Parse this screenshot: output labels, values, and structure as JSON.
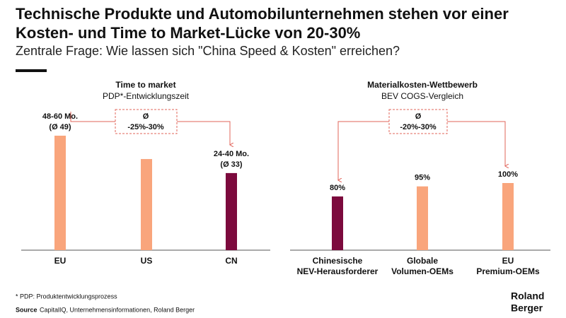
{
  "header": {
    "title": "Technische Produkte und Automobilunternehmen stehen vor einer Kosten- und Time to Market-Lücke von 20-30%",
    "subtitle": "Zentrale Frage: Wie lassen sich \"China Speed & Kosten\" erreichen?"
  },
  "chart_data": [
    {
      "type": "bar",
      "title": "Time to market",
      "subtitle": "PDP*-Entwicklungszeit",
      "categories": [
        [
          "EU"
        ],
        [
          "US"
        ],
        [
          "CN"
        ]
      ],
      "values": [
        49,
        39,
        33
      ],
      "value_labels": [
        [
          "48-60 Mo.",
          "(Ø 49)"
        ],
        null,
        [
          "24-40 Mo.",
          "(Ø 33)"
        ]
      ],
      "colors": [
        "#f9a57c",
        "#f9a57c",
        "#7c0a3d"
      ],
      "annotation": [
        "Ø",
        "-25%-30%"
      ]
    },
    {
      "type": "bar",
      "title": "Materialkosten-Wettbewerb",
      "subtitle": "BEV COGS-Vergleich",
      "categories": [
        [
          "Chinesische",
          "NEV-Herausforderer"
        ],
        [
          "Globale",
          "Volumen-OEMs"
        ],
        [
          "EU",
          "Premium-OEMs"
        ]
      ],
      "values": [
        80,
        95,
        100
      ],
      "value_labels": [
        [
          "80%"
        ],
        [
          "95%"
        ],
        [
          "100%"
        ]
      ],
      "colors": [
        "#7c0a3d",
        "#f9a57c",
        "#f9a57c"
      ],
      "annotation": [
        "Ø",
        "-20%-30%"
      ]
    }
  ],
  "footnote": "* PDP: Produktentwicklungsprozess",
  "source": {
    "label": "Source",
    "text": "CapitalIQ, Unternehmensinformationen, Roland Berger"
  },
  "logo": [
    "Roland",
    "Berger"
  ]
}
